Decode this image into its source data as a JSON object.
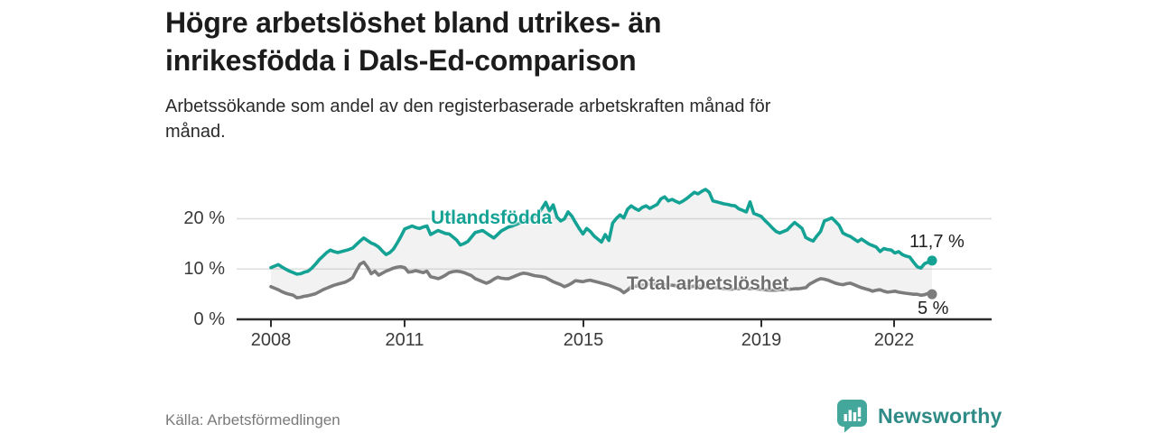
{
  "header": {
    "title": "Högre arbetslöshet bland utrikes- än\ninrikesfödda i Dals-Ed-comparison",
    "subtitle": "Arbetssökande som andel av den registerbaserade arbetskraften månad för\nmånad."
  },
  "footer": {
    "source": "Källa: Arbetsförmedlingen",
    "brand": "Newsworthy"
  },
  "colors": {
    "series_foreign": "#13a294",
    "series_total": "#7c7c7c",
    "area_fill": "rgba(170,170,170,0.15)",
    "brand_text": "#2f8b85",
    "brand_icon": "#43a79c",
    "gridline": "#dcdcdc",
    "axis": "#2e2e2e"
  },
  "chart_data": {
    "type": "line",
    "title": "Högre arbetslöshet bland utrikes- än inrikesfödda i Dals-Ed-comparison",
    "subtitle": "Arbetssökande som andel av den registerbaserade arbetskraften månad för månad.",
    "xlabel": "",
    "ylabel": "",
    "unit": "%",
    "grid": "horizontal",
    "legend_position": "inline-labels",
    "x_tick_labels": [
      "2008",
      "2011",
      "2015",
      "2019",
      "2022"
    ],
    "x_tick_years": [
      2008,
      2011,
      2015,
      2019,
      2022
    ],
    "y_tick_labels": [
      "0 %",
      "10 %",
      "20 %"
    ],
    "y_tick_values": [
      0,
      10,
      20
    ],
    "ylim": [
      0,
      28
    ],
    "xlim": [
      2007.3,
      2024.1
    ],
    "area_between_series": true,
    "series": [
      {
        "name": "Utlandsfödda",
        "end_label": "11,7 %",
        "end_value": 11.7,
        "color": "#13a294",
        "start_year": 2008,
        "points_per_year": 12,
        "values": [
          10.3,
          10.6,
          10.9,
          10.4,
          10,
          9.6,
          9.3,
          9,
          9.1,
          9.4,
          9.6,
          10.2,
          11,
          11.9,
          12.6,
          13.3,
          13.8,
          13.5,
          13.3,
          13.5,
          13.7,
          13.9,
          14.2,
          14.9,
          15.6,
          16.2,
          15.7,
          15.2,
          14.9,
          14.4,
          13.6,
          12.9,
          13.3,
          14,
          15.2,
          16.5,
          18,
          18.3,
          18.6,
          18.3,
          18.1,
          18.4,
          18.6,
          16.9,
          17.3,
          17.7,
          17.4,
          17.1,
          17,
          16.4,
          15.8,
          14.8,
          15.1,
          15.5,
          16.4,
          17.3,
          17.5,
          17.7,
          17.2,
          16.7,
          16.2,
          16.9,
          17.6,
          18,
          18.4,
          18.6,
          18.9,
          19.2,
          19.6,
          19.8,
          20.1,
          20.5,
          21,
          22.1,
          23.3,
          21.6,
          22.8,
          20.4,
          19.6,
          20,
          21.4,
          20.6,
          19.3,
          18.1,
          17,
          18.1,
          17.5,
          16.6,
          16,
          15.4,
          16.9,
          15.7,
          19.2,
          20.1,
          20.8,
          20.2,
          21.9,
          22.6,
          22.1,
          21.7,
          22.3,
          22.6,
          22.1,
          22.5,
          22.9,
          24,
          24.4,
          23.6,
          23.9,
          23.5,
          23.2,
          23.6,
          24.1,
          24.7,
          25.3,
          25,
          25.5,
          25.9,
          25.3,
          23.6,
          23.4,
          23.2,
          23,
          22.9,
          22.7,
          22.6,
          22,
          21.7,
          21.4,
          23.4,
          21.1,
          20.8,
          20.5,
          19.7,
          19,
          18.2,
          17.5,
          17.2,
          17.5,
          17.8,
          18.6,
          19.3,
          18.7,
          18.1,
          16.3,
          15.9,
          15.6,
          16.6,
          17.5,
          19.6,
          19.9,
          20.2,
          19.5,
          18.7,
          17.2,
          16.8,
          16.5,
          16,
          15.5,
          16,
          15.5,
          15,
          14.7,
          14.4,
          13.5,
          14.1,
          13.9,
          13.8,
          13.2,
          13.5,
          12.9,
          12.6,
          12.4,
          11.4,
          10.5,
          10.2,
          11.1,
          11.4,
          11.7
        ]
      },
      {
        "name": "Total arbetslöshet",
        "end_label": "5 %",
        "end_value": 5,
        "color": "#7c7c7c",
        "start_year": 2008,
        "points_per_year": 12,
        "values": [
          6.5,
          6.2,
          5.9,
          5.5,
          5.2,
          5,
          4.8,
          4.3,
          4.4,
          4.6,
          4.7,
          4.9,
          5.1,
          5.5,
          5.9,
          6.2,
          6.5,
          6.8,
          7,
          7.2,
          7.4,
          7.8,
          8.3,
          9.7,
          11,
          11.4,
          10.4,
          9.1,
          9.6,
          8.8,
          9.2,
          9.6,
          9.9,
          10.2,
          10.4,
          10.5,
          10.3,
          9.4,
          9.5,
          9.7,
          9.5,
          9.3,
          9.6,
          8.5,
          8.3,
          8.1,
          8.4,
          8.8,
          9.3,
          9.5,
          9.6,
          9.5,
          9.3,
          9,
          8.7,
          8.1,
          7.8,
          7.5,
          7.2,
          7.5,
          8,
          8.4,
          8.2,
          8.1,
          8.1,
          8.4,
          8.7,
          9,
          9.2,
          9.1,
          8.9,
          8.7,
          8.6,
          8.5,
          8.3,
          7.9,
          7.5,
          7.2,
          6.9,
          6.5,
          6.8,
          7.2,
          7.7,
          7.6,
          7.5,
          7.7,
          7.8,
          7.6,
          7.4,
          7.2,
          7,
          6.8,
          6.5,
          6.2,
          5.9,
          5.3,
          5.8,
          6.5,
          6.6,
          6.7,
          6.8,
          6.9,
          7,
          7,
          7,
          6.9,
          6.9,
          6.8,
          6.8,
          6.7,
          6.6,
          6.5,
          6.5,
          6.5,
          6.6,
          6.6,
          6.6,
          6.5,
          6.4,
          6.3,
          6.3,
          6.2,
          6.1,
          6,
          6,
          6.1,
          6.1,
          6.2,
          6.2,
          6.1,
          6.1,
          6,
          6,
          5.9,
          5.8,
          5.8,
          5.8,
          5.9,
          5.9,
          6,
          6,
          6.1,
          6.1,
          6.2,
          6.3,
          7,
          7.4,
          7.8,
          8.1,
          8,
          7.8,
          7.5,
          7.2,
          7,
          6.9,
          7.1,
          7.2,
          6.9,
          6.6,
          6.3,
          6.1,
          5.9,
          5.6,
          5.8,
          5.9,
          5.6,
          5.4,
          5.5,
          5.6,
          5.4,
          5.3,
          5.2,
          5.1,
          5,
          5,
          4.8,
          4.9,
          5.2,
          5
        ]
      }
    ]
  }
}
